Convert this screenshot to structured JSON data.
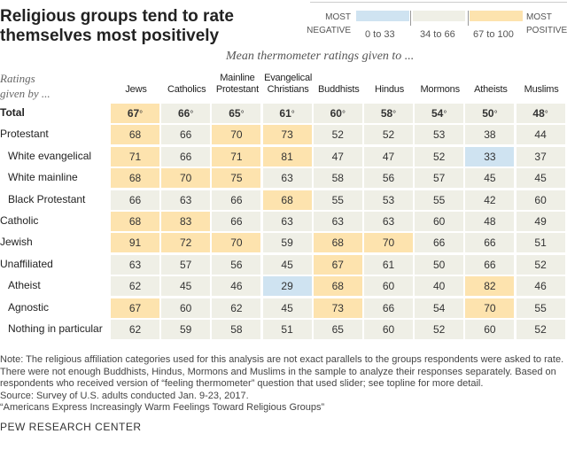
{
  "title": "Religious groups tend to rate themselves most positively",
  "legend": {
    "most_negative": [
      "MOST",
      "NEGATIVE"
    ],
    "most_positive": [
      "MOST",
      "POSITIVE"
    ],
    "bins": [
      {
        "label": "0 to 33",
        "color": "#cfe3f1"
      },
      {
        "label": "34 to 66",
        "color": "#efefe6"
      },
      {
        "label": "67 to 100",
        "color": "#fde3ae"
      }
    ]
  },
  "subtitle": "Mean thermometer ratings given to ...",
  "row_header": [
    "Ratings",
    "given by ..."
  ],
  "chart_data": {
    "type": "heatmap",
    "columns": [
      [
        "Jews"
      ],
      [
        "Catholics"
      ],
      [
        "Mainline",
        "Protestant"
      ],
      [
        "Evangelical",
        "Christians"
      ],
      [
        "Buddhists"
      ],
      [
        "Hindus"
      ],
      [
        "Mormons"
      ],
      [
        "Atheists"
      ],
      [
        "Muslims"
      ]
    ],
    "rows": [
      {
        "label": "Total",
        "indent": false,
        "bold": true,
        "values": [
          67,
          66,
          65,
          61,
          60,
          58,
          54,
          50,
          48
        ]
      },
      {
        "label": "Protestant",
        "indent": false,
        "values": [
          68,
          66,
          70,
          73,
          52,
          52,
          53,
          38,
          44
        ]
      },
      {
        "label": "White evangelical",
        "indent": true,
        "values": [
          71,
          66,
          71,
          81,
          47,
          47,
          52,
          33,
          37
        ]
      },
      {
        "label": "White mainline",
        "indent": true,
        "values": [
          68,
          70,
          75,
          63,
          58,
          56,
          57,
          45,
          45
        ]
      },
      {
        "label": "Black Protestant",
        "indent": true,
        "values": [
          66,
          63,
          66,
          68,
          55,
          53,
          55,
          42,
          60
        ]
      },
      {
        "label": "Catholic",
        "indent": false,
        "values": [
          68,
          83,
          66,
          63,
          63,
          63,
          60,
          48,
          49
        ]
      },
      {
        "label": "Jewish",
        "indent": false,
        "values": [
          91,
          72,
          70,
          59,
          68,
          70,
          66,
          66,
          51
        ]
      },
      {
        "label": "Unaffiliated",
        "indent": false,
        "values": [
          63,
          57,
          56,
          45,
          67,
          61,
          50,
          66,
          52
        ]
      },
      {
        "label": "Atheist",
        "indent": true,
        "values": [
          62,
          45,
          46,
          29,
          68,
          60,
          40,
          82,
          46
        ]
      },
      {
        "label": "Agnostic",
        "indent": true,
        "values": [
          67,
          60,
          62,
          45,
          73,
          66,
          54,
          70,
          55
        ]
      },
      {
        "label": "Nothing in particular",
        "indent": true,
        "values": [
          62,
          59,
          58,
          51,
          65,
          60,
          52,
          60,
          52
        ]
      }
    ],
    "unit_total": "°",
    "bins": [
      [
        0,
        33
      ],
      [
        34,
        66
      ],
      [
        67,
        100
      ]
    ]
  },
  "notes": [
    "Note: The religious affiliation categories used for this analysis are not exact parallels to the groups respondents were asked to rate. There were not enough Buddhists, Hindus, Mormons and Muslims in the sample to analyze their responses separately. Based on respondents who received version of “feeling thermometer” question that used slider; see topline for more detail.",
    "Source: Survey of U.S. adults conducted Jan. 9-23, 2017.",
    "“Americans Express Increasingly Warm Feelings Toward Religious Groups”"
  ],
  "brand": "PEW RESEARCH CENTER"
}
